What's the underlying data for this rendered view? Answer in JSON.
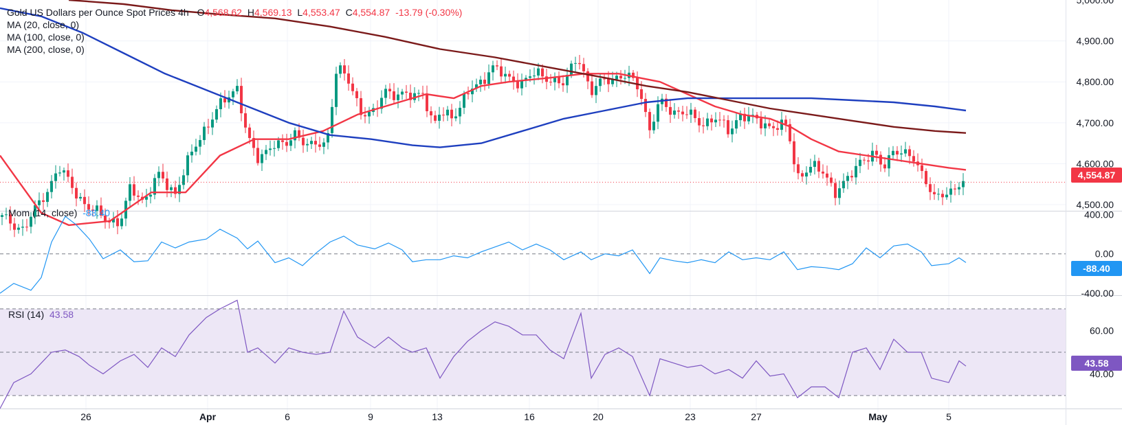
{
  "header": {
    "symbol": "Gold US Dollars per Ounce Spot Prices",
    "interval": "4h",
    "open_label": "O",
    "open": "4,568.62",
    "high_label": "H",
    "high": "4,569.13",
    "low_label": "L",
    "low": "4,553.47",
    "close_label": "C",
    "close": "4,554.87",
    "change": "-13.79 (-0.30%)"
  },
  "indicators": {
    "ma20": "MA (20, close, 0)",
    "ma100": "MA (100, close, 0)",
    "ma200": "MA (200, close, 0)",
    "mom_label": "Mom (14, close)",
    "mom_value": "-88.40",
    "rsi_label": "RSI (14)",
    "rsi_value": "43.58"
  },
  "price_badge": "4,554.87",
  "mom_badge": "-88.40",
  "rsi_badge": "43.58",
  "colors": {
    "up": "#089981",
    "down": "#f23645",
    "ma20": "#f23645",
    "ma100": "#1e3fbf",
    "ma200": "#7b1a1a",
    "mom": "#2196f3",
    "rsi": "#7e57c2",
    "rsi_band": "#ede7f6"
  },
  "chart_data": {
    "type": "candlestick",
    "x_tick_labels": [
      "26",
      "Apr",
      "6",
      "9",
      "13",
      "16",
      "20",
      "23",
      "27",
      "May",
      "5"
    ],
    "price_axis": {
      "ticks": [
        "4,900.00",
        "4,800.00",
        "4,700.00",
        "4,600.00",
        "4,500.00"
      ],
      "top_clipped": "5,000.00",
      "range": [
        4485,
        5000
      ]
    },
    "price_anchors": [
      [
        0,
        4470
      ],
      [
        35,
        4440
      ],
      [
        70,
        4540
      ],
      [
        85,
        4590
      ],
      [
        100,
        4555
      ],
      [
        115,
        4520
      ],
      [
        130,
        4490
      ],
      [
        150,
        4470
      ],
      [
        175,
        4455
      ],
      [
        190,
        4540
      ],
      [
        210,
        4510
      ],
      [
        230,
        4570
      ],
      [
        255,
        4530
      ],
      [
        275,
        4610
      ],
      [
        295,
        4680
      ],
      [
        320,
        4740
      ],
      [
        345,
        4790
      ],
      [
        360,
        4660
      ],
      [
        375,
        4610
      ],
      [
        395,
        4650
      ],
      [
        415,
        4640
      ],
      [
        430,
        4680
      ],
      [
        450,
        4640
      ],
      [
        475,
        4650
      ],
      [
        490,
        4840
      ],
      [
        510,
        4790
      ],
      [
        525,
        4730
      ],
      [
        545,
        4720
      ],
      [
        560,
        4780
      ],
      [
        580,
        4770
      ],
      [
        600,
        4760
      ],
      [
        615,
        4780
      ],
      [
        630,
        4690
      ],
      [
        640,
        4720
      ],
      [
        660,
        4720
      ],
      [
        680,
        4770
      ],
      [
        700,
        4800
      ],
      [
        715,
        4840
      ],
      [
        735,
        4810
      ],
      [
        760,
        4800
      ],
      [
        780,
        4820
      ],
      [
        800,
        4810
      ],
      [
        820,
        4790
      ],
      [
        840,
        4870
      ],
      [
        860,
        4770
      ],
      [
        880,
        4810
      ],
      [
        900,
        4810
      ],
      [
        915,
        4810
      ],
      [
        930,
        4790
      ],
      [
        945,
        4680
      ],
      [
        960,
        4750
      ],
      [
        980,
        4730
      ],
      [
        1000,
        4720
      ],
      [
        1020,
        4700
      ],
      [
        1040,
        4710
      ],
      [
        1060,
        4680
      ],
      [
        1075,
        4720
      ],
      [
        1090,
        4710
      ],
      [
        1110,
        4700
      ],
      [
        1125,
        4690
      ],
      [
        1145,
        4690
      ],
      [
        1160,
        4570
      ],
      [
        1180,
        4590
      ],
      [
        1200,
        4580
      ],
      [
        1215,
        4530
      ],
      [
        1230,
        4550
      ],
      [
        1250,
        4610
      ],
      [
        1270,
        4620
      ],
      [
        1285,
        4590
      ],
      [
        1300,
        4640
      ],
      [
        1315,
        4620
      ],
      [
        1330,
        4610
      ],
      [
        1345,
        4570
      ],
      [
        1360,
        4510
      ],
      [
        1380,
        4530
      ],
      [
        1395,
        4555
      ],
      [
        1405,
        4555
      ]
    ],
    "series": [
      {
        "name": "MA (20, close, 0)",
        "points": [
          [
            0,
            4620
          ],
          [
            60,
            4480
          ],
          [
            100,
            4450
          ],
          [
            160,
            4460
          ],
          [
            220,
            4530
          ],
          [
            270,
            4530
          ],
          [
            320,
            4620
          ],
          [
            370,
            4660
          ],
          [
            420,
            4660
          ],
          [
            470,
            4680
          ],
          [
            520,
            4720
          ],
          [
            580,
            4750
          ],
          [
            620,
            4770
          ],
          [
            660,
            4760
          ],
          [
            700,
            4790
          ],
          [
            740,
            4800
          ],
          [
            800,
            4810
          ],
          [
            850,
            4820
          ],
          [
            900,
            4820
          ],
          [
            930,
            4810
          ],
          [
            960,
            4800
          ],
          [
            1000,
            4770
          ],
          [
            1040,
            4740
          ],
          [
            1080,
            4720
          ],
          [
            1120,
            4710
          ],
          [
            1150,
            4690
          ],
          [
            1180,
            4660
          ],
          [
            1220,
            4630
          ],
          [
            1260,
            4620
          ],
          [
            1300,
            4610
          ],
          [
            1340,
            4600
          ],
          [
            1380,
            4590
          ],
          [
            1405,
            4585
          ]
        ]
      },
      {
        "name": "MA (100, close, 0)",
        "points": [
          [
            0,
            4980
          ],
          [
            60,
            4960
          ],
          [
            120,
            4920
          ],
          [
            180,
            4870
          ],
          [
            240,
            4820
          ],
          [
            300,
            4780
          ],
          [
            360,
            4740
          ],
          [
            420,
            4700
          ],
          [
            480,
            4670
          ],
          [
            540,
            4660
          ],
          [
            600,
            4645
          ],
          [
            640,
            4640
          ],
          [
            700,
            4650
          ],
          [
            760,
            4680
          ],
          [
            820,
            4710
          ],
          [
            880,
            4730
          ],
          [
            940,
            4750
          ],
          [
            1000,
            4760
          ],
          [
            1060,
            4760
          ],
          [
            1120,
            4760
          ],
          [
            1180,
            4760
          ],
          [
            1240,
            4755
          ],
          [
            1300,
            4750
          ],
          [
            1360,
            4740
          ],
          [
            1405,
            4730
          ]
        ]
      },
      {
        "name": "MA (200, close, 0)",
        "points": [
          [
            100,
            5000
          ],
          [
            180,
            4990
          ],
          [
            250,
            4975
          ],
          [
            320,
            4965
          ],
          [
            400,
            4955
          ],
          [
            480,
            4935
          ],
          [
            560,
            4910
          ],
          [
            640,
            4880
          ],
          [
            720,
            4860
          ],
          [
            800,
            4835
          ],
          [
            880,
            4810
          ],
          [
            940,
            4790
          ],
          [
            1000,
            4775
          ],
          [
            1060,
            4755
          ],
          [
            1120,
            4735
          ],
          [
            1180,
            4720
          ],
          [
            1240,
            4705
          ],
          [
            1300,
            4690
          ],
          [
            1360,
            4680
          ],
          [
            1405,
            4675
          ]
        ]
      }
    ],
    "momentum": {
      "name": "Mom (14, close)",
      "axis_ticks": [
        "400.00",
        "0.00",
        "-400.00"
      ],
      "range": [
        -420,
        430
      ],
      "points": [
        [
          0,
          -400
        ],
        [
          20,
          -300
        ],
        [
          45,
          -370
        ],
        [
          60,
          -240
        ],
        [
          75,
          120
        ],
        [
          95,
          380
        ],
        [
          110,
          300
        ],
        [
          130,
          150
        ],
        [
          150,
          -50
        ],
        [
          175,
          40
        ],
        [
          195,
          -80
        ],
        [
          215,
          -70
        ],
        [
          235,
          120
        ],
        [
          255,
          60
        ],
        [
          275,
          120
        ],
        [
          300,
          150
        ],
        [
          320,
          250
        ],
        [
          345,
          160
        ],
        [
          360,
          50
        ],
        [
          375,
          130
        ],
        [
          400,
          -90
        ],
        [
          420,
          -40
        ],
        [
          440,
          -120
        ],
        [
          460,
          10
        ],
        [
          480,
          120
        ],
        [
          500,
          180
        ],
        [
          520,
          90
        ],
        [
          545,
          50
        ],
        [
          565,
          110
        ],
        [
          585,
          40
        ],
        [
          600,
          -80
        ],
        [
          620,
          -60
        ],
        [
          640,
          -60
        ],
        [
          660,
          -20
        ],
        [
          680,
          -40
        ],
        [
          700,
          20
        ],
        [
          720,
          70
        ],
        [
          740,
          120
        ],
        [
          760,
          40
        ],
        [
          780,
          100
        ],
        [
          800,
          40
        ],
        [
          820,
          -60
        ],
        [
          845,
          20
        ],
        [
          860,
          -60
        ],
        [
          880,
          0
        ],
        [
          900,
          -20
        ],
        [
          920,
          40
        ],
        [
          945,
          -200
        ],
        [
          960,
          -40
        ],
        [
          980,
          -70
        ],
        [
          1000,
          -90
        ],
        [
          1020,
          -60
        ],
        [
          1040,
          -90
        ],
        [
          1060,
          20
        ],
        [
          1080,
          -60
        ],
        [
          1100,
          -40
        ],
        [
          1120,
          -60
        ],
        [
          1140,
          20
        ],
        [
          1160,
          -160
        ],
        [
          1180,
          -130
        ],
        [
          1200,
          -140
        ],
        [
          1220,
          -160
        ],
        [
          1240,
          -100
        ],
        [
          1260,
          60
        ],
        [
          1280,
          -40
        ],
        [
          1300,
          80
        ],
        [
          1320,
          100
        ],
        [
          1340,
          20
        ],
        [
          1355,
          -120
        ],
        [
          1380,
          -100
        ],
        [
          1395,
          -40
        ],
        [
          1405,
          -88.4
        ]
      ]
    },
    "rsi": {
      "name": "RSI (14)",
      "axis_ticks": [
        "60.00",
        "40.00"
      ],
      "band": [
        30,
        70
      ],
      "mid": 50,
      "range": [
        24,
        76
      ],
      "points": [
        [
          0,
          24
        ],
        [
          20,
          36
        ],
        [
          45,
          40
        ],
        [
          60,
          45
        ],
        [
          75,
          50
        ],
        [
          95,
          51
        ],
        [
          115,
          48
        ],
        [
          130,
          44
        ],
        [
          150,
          40
        ],
        [
          175,
          46
        ],
        [
          195,
          49
        ],
        [
          215,
          43
        ],
        [
          235,
          52
        ],
        [
          255,
          48
        ],
        [
          275,
          58
        ],
        [
          300,
          66
        ],
        [
          320,
          70
        ],
        [
          345,
          74
        ],
        [
          360,
          50
        ],
        [
          375,
          52
        ],
        [
          400,
          45
        ],
        [
          420,
          52
        ],
        [
          440,
          50
        ],
        [
          460,
          49
        ],
        [
          480,
          50
        ],
        [
          500,
          69
        ],
        [
          520,
          57
        ],
        [
          545,
          52
        ],
        [
          565,
          57
        ],
        [
          585,
          52
        ],
        [
          600,
          50
        ],
        [
          620,
          52
        ],
        [
          640,
          38
        ],
        [
          660,
          48
        ],
        [
          680,
          55
        ],
        [
          700,
          60
        ],
        [
          720,
          64
        ],
        [
          740,
          62
        ],
        [
          760,
          58
        ],
        [
          780,
          58
        ],
        [
          800,
          51
        ],
        [
          820,
          47
        ],
        [
          845,
          68
        ],
        [
          860,
          38
        ],
        [
          880,
          49
        ],
        [
          900,
          52
        ],
        [
          920,
          48
        ],
        [
          945,
          30
        ],
        [
          960,
          47
        ],
        [
          980,
          45
        ],
        [
          1000,
          43
        ],
        [
          1020,
          44
        ],
        [
          1040,
          40
        ],
        [
          1060,
          42
        ],
        [
          1080,
          38
        ],
        [
          1100,
          46
        ],
        [
          1120,
          39
        ],
        [
          1140,
          40
        ],
        [
          1160,
          29
        ],
        [
          1180,
          34
        ],
        [
          1200,
          34
        ],
        [
          1220,
          29
        ],
        [
          1240,
          50
        ],
        [
          1260,
          52
        ],
        [
          1280,
          42
        ],
        [
          1300,
          56
        ],
        [
          1320,
          50
        ],
        [
          1340,
          50
        ],
        [
          1355,
          38
        ],
        [
          1380,
          36
        ],
        [
          1395,
          46
        ],
        [
          1405,
          43.58
        ]
      ]
    }
  }
}
